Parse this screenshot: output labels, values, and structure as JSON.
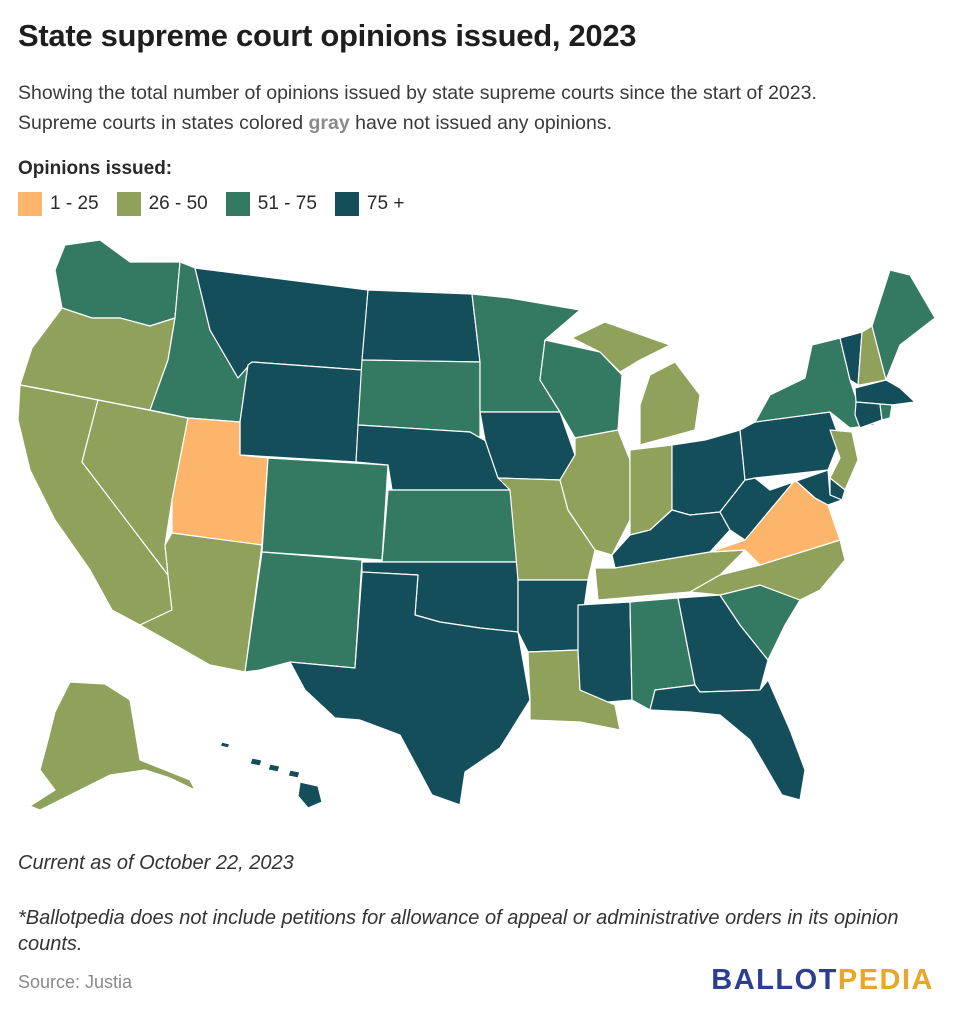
{
  "header": {
    "title": "State supreme court opinions issued, 2023",
    "subtitle_line1": "Showing the total number of opinions issued by state supreme courts since the start of 2023.",
    "subtitle_line2_pre": "Supreme courts in states colored ",
    "subtitle_gray_word": "gray",
    "subtitle_line2_post": " have not issued any opinions."
  },
  "legend": {
    "title": "Opinions issued:",
    "items": [
      {
        "label": "1 - 25",
        "color": "#fdb56b"
      },
      {
        "label": "26 - 50",
        "color": "#8fa15a"
      },
      {
        "label": "51 - 75",
        "color": "#347a63"
      },
      {
        "label": "75 +",
        "color": "#154e5b"
      }
    ]
  },
  "map_data": {
    "category_colors": {
      "1-25": "#fdb56b",
      "26-50": "#8fa15a",
      "51-75": "#347a63",
      "75+": "#154e5b"
    },
    "states": {
      "WA": "51-75",
      "OR": "26-50",
      "CA": "26-50",
      "NV": "26-50",
      "ID": "51-75",
      "MT": "75+",
      "WY": "75+",
      "UT": "1-25",
      "AZ": "26-50",
      "CO": "51-75",
      "NM": "51-75",
      "ND": "75+",
      "SD": "51-75",
      "NE": "75+",
      "KS": "51-75",
      "OK": "75+",
      "TX": "75+",
      "MN": "51-75",
      "IA": "75+",
      "MO": "26-50",
      "AR": "75+",
      "LA": "26-50",
      "WI": "51-75",
      "IL": "26-50",
      "MI": "26-50",
      "IN": "26-50",
      "OH": "75+",
      "KY": "75+",
      "TN": "26-50",
      "MS": "75+",
      "AL": "51-75",
      "GA": "75+",
      "FL": "75+",
      "SC": "51-75",
      "NC": "26-50",
      "VA": "1-25",
      "WV": "75+",
      "PA": "75+",
      "NY": "51-75",
      "VT": "75+",
      "NH": "26-50",
      "ME": "51-75",
      "MA": "75+",
      "CT": "75+",
      "RI": "51-75",
      "NJ": "26-50",
      "DE": "75+",
      "MD": "75+",
      "AK": "26-50",
      "HI": "75+"
    }
  },
  "footer": {
    "current": "Current as of October 22, 2023",
    "footnote": "*Ballotpedia does not include petitions for allowance of appeal or administrative orders in its opinion counts.",
    "source": "Source: Justia",
    "logo_part1": "BALLOT",
    "logo_part2": "PEDIA"
  }
}
